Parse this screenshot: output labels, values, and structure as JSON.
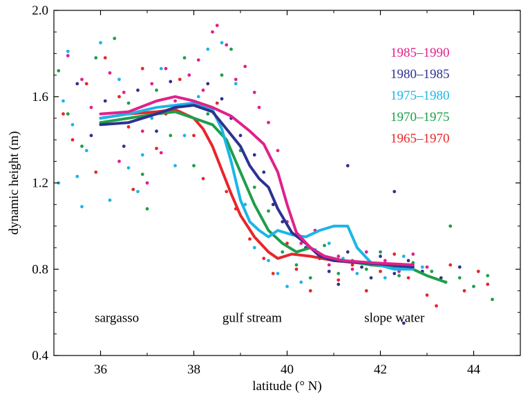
{
  "chart_data": {
    "type": "scatter",
    "title": "",
    "xlabel": "latitude (° N)",
    "ylabel": "dynamic height (m)",
    "xlim": [
      35,
      45
    ],
    "ylim": [
      0.4,
      2.0
    ],
    "xticks": [
      36,
      38,
      40,
      42,
      44
    ],
    "yticks": [
      0.4,
      0.8,
      1.2,
      1.6,
      2.0
    ],
    "xtick_labels": [
      "36",
      "38",
      "40",
      "42",
      "44"
    ],
    "ytick_labels": [
      "0.4",
      "0.8",
      "1.2",
      "1.6",
      "2.0"
    ],
    "grid": false,
    "legend_position": "top-right",
    "annotations": [
      {
        "text": "sargasso",
        "x": 36.35,
        "y": 0.555
      },
      {
        "text": "gulf stream",
        "x": 39.25,
        "y": 0.555
      },
      {
        "text": "slope water",
        "x": 42.3,
        "y": 0.555
      }
    ],
    "series": [
      {
        "name": "1985–1990",
        "color": "#e0218a",
        "line": [
          [
            36.0,
            1.52
          ],
          [
            36.6,
            1.53
          ],
          [
            37.2,
            1.58
          ],
          [
            37.6,
            1.6
          ],
          [
            38.0,
            1.58
          ],
          [
            38.4,
            1.55
          ],
          [
            38.8,
            1.51
          ],
          [
            39.2,
            1.44
          ],
          [
            39.5,
            1.38
          ],
          [
            39.8,
            1.25
          ],
          [
            40.0,
            1.1
          ],
          [
            40.2,
            0.97
          ],
          [
            40.5,
            0.9
          ],
          [
            40.8,
            0.86
          ],
          [
            41.2,
            0.84
          ],
          [
            41.8,
            0.83
          ],
          [
            42.7,
            0.82
          ]
        ],
        "points": [
          [
            35.3,
            1.79
          ],
          [
            35.6,
            1.68
          ],
          [
            35.8,
            1.55
          ],
          [
            36.2,
            1.71
          ],
          [
            36.5,
            1.62
          ],
          [
            36.9,
            1.44
          ],
          [
            37.1,
            1.66
          ],
          [
            37.4,
            1.73
          ],
          [
            37.6,
            1.58
          ],
          [
            37.9,
            1.7
          ],
          [
            38.1,
            1.77
          ],
          [
            38.2,
            1.63
          ],
          [
            38.4,
            1.9
          ],
          [
            38.5,
            1.93
          ],
          [
            38.7,
            1.84
          ],
          [
            38.9,
            1.68
          ],
          [
            39.1,
            1.74
          ],
          [
            39.3,
            1.62
          ],
          [
            39.4,
            1.55
          ],
          [
            39.6,
            1.48
          ],
          [
            39.8,
            1.35
          ],
          [
            40.0,
            1.02
          ],
          [
            40.3,
            0.92
          ],
          [
            40.6,
            0.98
          ],
          [
            40.9,
            0.82
          ],
          [
            41.1,
            0.86
          ],
          [
            41.4,
            0.8
          ],
          [
            41.7,
            0.88
          ],
          [
            42.1,
            0.84
          ],
          [
            42.4,
            0.79
          ],
          [
            42.7,
            0.87
          ],
          [
            43.0,
            0.81
          ],
          [
            36.4,
            1.3
          ],
          [
            37.0,
            1.2
          ],
          [
            37.3,
            1.34
          ]
        ]
      },
      {
        "name": "1980–1985",
        "color": "#2e3192",
        "line": [
          [
            36.0,
            1.47
          ],
          [
            36.6,
            1.48
          ],
          [
            37.2,
            1.52
          ],
          [
            37.6,
            1.55
          ],
          [
            38.0,
            1.56
          ],
          [
            38.4,
            1.53
          ],
          [
            38.7,
            1.45
          ],
          [
            39.0,
            1.37
          ],
          [
            39.2,
            1.28
          ],
          [
            39.4,
            1.22
          ],
          [
            39.6,
            1.18
          ],
          [
            39.8,
            1.08
          ],
          [
            40.1,
            0.97
          ],
          [
            40.4,
            0.92
          ],
          [
            40.7,
            0.86
          ],
          [
            41.0,
            0.84
          ],
          [
            41.6,
            0.83
          ],
          [
            42.2,
            0.82
          ],
          [
            42.7,
            0.81
          ]
        ],
        "points": [
          [
            35.5,
            1.66
          ],
          [
            35.8,
            1.42
          ],
          [
            36.1,
            1.58
          ],
          [
            36.5,
            1.37
          ],
          [
            36.8,
            1.63
          ],
          [
            37.2,
            1.44
          ],
          [
            37.5,
            1.67
          ],
          [
            37.8,
            1.56
          ],
          [
            38.3,
            1.66
          ],
          [
            38.6,
            1.59
          ],
          [
            38.8,
            1.5
          ],
          [
            39.0,
            1.42
          ],
          [
            39.3,
            1.33
          ],
          [
            39.5,
            1.25
          ],
          [
            39.7,
            1.1
          ],
          [
            39.9,
            1.02
          ],
          [
            40.2,
            0.96
          ],
          [
            40.4,
            0.9
          ],
          [
            40.7,
            0.85
          ],
          [
            40.9,
            0.79
          ],
          [
            41.1,
            0.73
          ],
          [
            41.3,
            0.88
          ],
          [
            41.6,
            0.81
          ],
          [
            41.8,
            0.76
          ],
          [
            42.0,
            0.86
          ],
          [
            42.3,
            0.78
          ],
          [
            42.6,
            0.84
          ],
          [
            42.9,
            0.79
          ],
          [
            43.3,
            0.76
          ],
          [
            43.7,
            0.81
          ],
          [
            41.3,
            1.28
          ],
          [
            42.3,
            1.16
          ],
          [
            42.5,
            0.55
          ]
        ]
      },
      {
        "name": "1975–1980",
        "color": "#1cb5e8",
        "line": [
          [
            36.0,
            1.5
          ],
          [
            36.6,
            1.52
          ],
          [
            37.2,
            1.55
          ],
          [
            37.6,
            1.56
          ],
          [
            38.0,
            1.57
          ],
          [
            38.4,
            1.54
          ],
          [
            38.6,
            1.45
          ],
          [
            38.8,
            1.3
          ],
          [
            39.0,
            1.12
          ],
          [
            39.2,
            1.02
          ],
          [
            39.4,
            0.98
          ],
          [
            39.6,
            0.95
          ],
          [
            39.8,
            0.98
          ],
          [
            40.1,
            0.96
          ],
          [
            40.4,
            0.95
          ],
          [
            40.7,
            0.98
          ],
          [
            41.0,
            1.0
          ],
          [
            41.3,
            1.0
          ],
          [
            41.5,
            0.9
          ],
          [
            41.8,
            0.83
          ],
          [
            42.3,
            0.8
          ],
          [
            42.7,
            0.8
          ]
        ],
        "points": [
          [
            35.1,
            1.2
          ],
          [
            35.2,
            1.58
          ],
          [
            35.3,
            1.81
          ],
          [
            35.4,
            1.47
          ],
          [
            35.5,
            1.23
          ],
          [
            35.7,
            1.35
          ],
          [
            36.0,
            1.85
          ],
          [
            36.2,
            1.12
          ],
          [
            36.4,
            1.68
          ],
          [
            36.6,
            1.27
          ],
          [
            36.9,
            1.33
          ],
          [
            37.1,
            1.5
          ],
          [
            37.3,
            1.73
          ],
          [
            37.6,
            1.28
          ],
          [
            37.8,
            1.42
          ],
          [
            38.1,
            1.6
          ],
          [
            38.3,
            1.82
          ],
          [
            38.6,
            1.85
          ],
          [
            38.9,
            1.66
          ],
          [
            39.1,
            1.1
          ],
          [
            39.3,
            0.9
          ],
          [
            39.6,
            0.84
          ],
          [
            39.8,
            0.78
          ],
          [
            40.0,
            0.72
          ],
          [
            40.3,
            0.74
          ],
          [
            40.6,
            0.89
          ],
          [
            40.9,
            0.92
          ],
          [
            41.2,
            0.85
          ],
          [
            41.5,
            0.78
          ],
          [
            41.8,
            0.82
          ],
          [
            42.1,
            0.76
          ],
          [
            42.5,
            0.86
          ],
          [
            42.9,
            0.81
          ],
          [
            35.6,
            1.09
          ],
          [
            36.8,
            1.16
          ]
        ]
      },
      {
        "name": "1970–1975",
        "color": "#1e9e4a",
        "line": [
          [
            36.0,
            1.48
          ],
          [
            36.6,
            1.5
          ],
          [
            37.2,
            1.52
          ],
          [
            37.6,
            1.53
          ],
          [
            38.0,
            1.5
          ],
          [
            38.4,
            1.47
          ],
          [
            38.7,
            1.4
          ],
          [
            39.0,
            1.25
          ],
          [
            39.3,
            1.1
          ],
          [
            39.6,
            0.98
          ],
          [
            39.9,
            0.92
          ],
          [
            40.2,
            0.88
          ],
          [
            40.5,
            0.9
          ],
          [
            40.8,
            0.86
          ],
          [
            41.2,
            0.84
          ],
          [
            41.8,
            0.82
          ],
          [
            42.3,
            0.81
          ],
          [
            42.7,
            0.8
          ],
          [
            43.0,
            0.77
          ],
          [
            43.4,
            0.74
          ]
        ],
        "points": [
          [
            35.1,
            1.72
          ],
          [
            35.3,
            1.52
          ],
          [
            35.6,
            1.37
          ],
          [
            35.9,
            1.78
          ],
          [
            36.3,
            1.87
          ],
          [
            36.6,
            1.57
          ],
          [
            36.9,
            1.24
          ],
          [
            37.2,
            1.63
          ],
          [
            37.5,
            1.42
          ],
          [
            37.8,
            1.78
          ],
          [
            38.0,
            1.28
          ],
          [
            38.3,
            1.52
          ],
          [
            38.6,
            1.7
          ],
          [
            38.8,
            1.82
          ],
          [
            39.0,
            1.35
          ],
          [
            39.3,
            1.18
          ],
          [
            39.6,
            1.07
          ],
          [
            39.9,
            0.88
          ],
          [
            40.2,
            0.82
          ],
          [
            40.5,
            0.76
          ],
          [
            40.8,
            0.91
          ],
          [
            41.1,
            0.78
          ],
          [
            41.4,
            0.84
          ],
          [
            41.7,
            0.8
          ],
          [
            42.0,
            0.88
          ],
          [
            42.4,
            0.77
          ],
          [
            42.7,
            0.83
          ],
          [
            43.1,
            0.79
          ],
          [
            43.4,
            0.74
          ],
          [
            43.7,
            0.76
          ],
          [
            44.0,
            0.72
          ],
          [
            44.3,
            0.77
          ],
          [
            44.4,
            0.66
          ],
          [
            43.5,
            1.0
          ],
          [
            37.0,
            1.08
          ]
        ]
      },
      {
        "name": "1965–1970",
        "color": "#e8262a",
        "line": [
          [
            36.0,
            1.5
          ],
          [
            36.6,
            1.52
          ],
          [
            37.2,
            1.53
          ],
          [
            37.6,
            1.54
          ],
          [
            38.0,
            1.5
          ],
          [
            38.2,
            1.45
          ],
          [
            38.4,
            1.37
          ],
          [
            38.6,
            1.26
          ],
          [
            38.8,
            1.15
          ],
          [
            39.0,
            1.05
          ],
          [
            39.3,
            0.95
          ],
          [
            39.6,
            0.88
          ],
          [
            39.8,
            0.85
          ],
          [
            40.1,
            0.87
          ],
          [
            40.5,
            0.86
          ],
          [
            41.0,
            0.84
          ],
          [
            41.5,
            0.83
          ],
          [
            42.0,
            0.82
          ],
          [
            42.7,
            0.82
          ]
        ],
        "points": [
          [
            35.2,
            1.52
          ],
          [
            35.4,
            1.4
          ],
          [
            35.7,
            1.66
          ],
          [
            35.9,
            1.25
          ],
          [
            36.1,
            1.78
          ],
          [
            36.4,
            1.6
          ],
          [
            36.7,
            1.17
          ],
          [
            36.9,
            1.73
          ],
          [
            37.2,
            1.36
          ],
          [
            37.4,
            1.52
          ],
          [
            37.7,
            1.68
          ],
          [
            38.0,
            1.42
          ],
          [
            38.2,
            1.22
          ],
          [
            38.5,
            1.57
          ],
          [
            38.7,
            1.16
          ],
          [
            38.9,
            1.08
          ],
          [
            39.2,
            0.94
          ],
          [
            39.5,
            0.85
          ],
          [
            39.7,
            0.78
          ],
          [
            40.0,
            0.92
          ],
          [
            40.2,
            0.8
          ],
          [
            40.5,
            0.7
          ],
          [
            40.8,
            0.86
          ],
          [
            41.1,
            0.75
          ],
          [
            41.4,
            0.82
          ],
          [
            41.7,
            0.7
          ],
          [
            42.0,
            0.79
          ],
          [
            42.3,
            0.87
          ],
          [
            42.6,
            0.76
          ],
          [
            43.0,
            0.68
          ],
          [
            43.2,
            0.63
          ],
          [
            43.5,
            0.82
          ],
          [
            43.8,
            0.7
          ],
          [
            44.1,
            0.79
          ],
          [
            44.3,
            0.73
          ],
          [
            36.6,
            1.46
          ]
        ]
      }
    ]
  }
}
